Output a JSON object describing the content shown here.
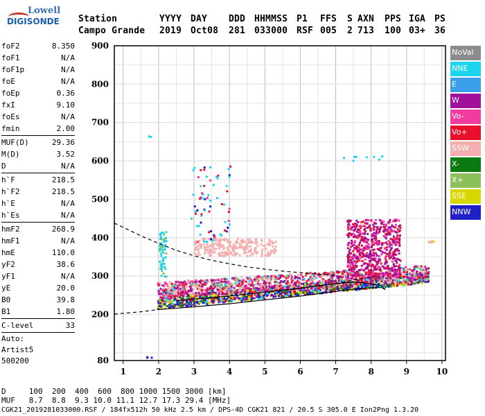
{
  "logo": {
    "line1": "Lowell",
    "line2": "DIGISONDE"
  },
  "header": {
    "labels": [
      "Station",
      "YYYY",
      "DAY",
      "DDD",
      "HHMMSS",
      "P1",
      "FFS",
      "S",
      "AXN",
      "PPS",
      "IGA",
      "PS"
    ],
    "values": [
      "Campo Grande",
      "2019",
      "Oct08",
      "281",
      "033000",
      "RSF",
      "005",
      "2",
      "713",
      "100",
      "03+",
      "36"
    ]
  },
  "params": [
    {
      "name": "foF2",
      "value": "8.350"
    },
    {
      "name": "foF1",
      "value": "N/A"
    },
    {
      "name": "foF1p",
      "value": "N/A"
    },
    {
      "name": "foE",
      "value": "N/A"
    },
    {
      "name": "foEp",
      "value": "0.36"
    },
    {
      "name": "fxI",
      "value": "9.10"
    },
    {
      "name": "foEs",
      "value": "N/A"
    },
    {
      "name": "fmin",
      "value": "2.00"
    },
    {
      "sep": true
    },
    {
      "name": "MUF(D)",
      "value": "29.36"
    },
    {
      "name": "M(D)",
      "value": "3.52"
    },
    {
      "name": "D",
      "value": "N/A"
    },
    {
      "sep": true
    },
    {
      "name": "h`F",
      "value": "218.5"
    },
    {
      "name": "h`F2",
      "value": "218.5"
    },
    {
      "name": "h`E",
      "value": "N/A"
    },
    {
      "name": "h`Es",
      "value": "N/A"
    },
    {
      "sep": true
    },
    {
      "name": "hmF2",
      "value": "268.9"
    },
    {
      "name": "hmF1",
      "value": "N/A"
    },
    {
      "name": "hmE",
      "value": "110.0"
    },
    {
      "name": "yF2",
      "value": "38.6"
    },
    {
      "name": "yF1",
      "value": "N/A"
    },
    {
      "name": "yE",
      "value": "20.0"
    },
    {
      "name": "B0",
      "value": "39.8"
    },
    {
      "name": "B1",
      "value": "1.80"
    },
    {
      "sep": true
    },
    {
      "name": "C-level",
      "value": "33"
    },
    {
      "sep": true
    }
  ],
  "auto": [
    "Auto:",
    "Artist5",
    "500200"
  ],
  "legend": [
    {
      "label": "NoVal",
      "color": "#8c8c8c"
    },
    {
      "label": "NNE",
      "color": "#1ad4f0"
    },
    {
      "label": "E",
      "color": "#3a9ee8"
    },
    {
      "label": "W",
      "color": "#a0109a"
    },
    {
      "label": "Vo-",
      "color": "#f03ca0"
    },
    {
      "label": "Vo+",
      "color": "#e8102a"
    },
    {
      "label": "SSW",
      "color": "#f4aeae"
    },
    {
      "label": "X-",
      "color": "#0a7a10"
    },
    {
      "label": "X+",
      "color": "#8cc05a"
    },
    {
      "label": "SSE",
      "color": "#d8d800"
    },
    {
      "label": "NNW",
      "color": "#2020c8"
    }
  ],
  "footer": {
    "line1": "D     100  200  400  600  800 1000 1500 3000 [km]",
    "line2": "MUF   8.7  8.8  9.3 10.0 11.1 12.7 17.3 29.4 [MHz]",
    "line3": "CGK21_2019281033000.RSF / 184fx512h 50 kHz 2.5 km / DPS-4D CGK21 821 / 20.5 S 305.0 E Ion2Png 1.3.20"
  },
  "chart_data": {
    "type": "scatter",
    "xlim": [
      0.75,
      10.1
    ],
    "ylim": [
      80,
      900
    ],
    "xticks": [
      1,
      2,
      3,
      4,
      5,
      6,
      7,
      8,
      9,
      10
    ],
    "yticks": [
      80,
      200,
      300,
      400,
      500,
      600,
      700,
      800,
      900
    ],
    "grid": true,
    "legend_position": "right",
    "traces": [
      {
        "style": "dashed",
        "points": [
          [
            0.75,
            438
          ],
          [
            1.5,
            405
          ],
          [
            2.0,
            385
          ],
          [
            2.5,
            367
          ],
          [
            3.0,
            353
          ],
          [
            3.5,
            341
          ],
          [
            4.0,
            332
          ],
          [
            4.5,
            324
          ],
          [
            5.0,
            318
          ],
          [
            5.5,
            313
          ],
          [
            6.0,
            309
          ],
          [
            6.5,
            305
          ],
          [
            7.0,
            302
          ]
        ]
      },
      {
        "style": "dashed",
        "points": [
          [
            0.75,
            201
          ],
          [
            1.5,
            207
          ],
          [
            2.0,
            213
          ]
        ]
      },
      {
        "style": "solid",
        "points": [
          [
            2.0,
            213
          ],
          [
            3.0,
            220
          ],
          [
            4.0,
            228
          ],
          [
            5.0,
            238
          ],
          [
            6.0,
            248
          ],
          [
            7.0,
            260
          ],
          [
            7.5,
            266
          ],
          [
            8.0,
            270
          ],
          [
            8.3,
            270
          ],
          [
            8.4,
            265
          ],
          [
            8.3,
            275
          ],
          [
            8.0,
            280
          ],
          [
            7.5,
            285
          ],
          [
            7.0,
            280
          ],
          [
            6.5,
            275
          ],
          [
            6.0,
            268
          ],
          [
            5.0,
            258
          ],
          [
            4.0,
            248
          ],
          [
            3.0,
            240
          ],
          [
            2.5,
            236
          ]
        ]
      },
      {
        "style": "dashed",
        "points": [
          [
            7.0,
            280
          ],
          [
            7.6,
            292
          ],
          [
            8.1,
            299
          ]
        ]
      }
    ],
    "clusters": [
      {
        "x": [
          1.95,
          9.6
        ],
        "y": [
          220,
          270
        ],
        "count": 1400,
        "colors": [
          "#2020c8",
          "#d8d800",
          "#0a7a10",
          "#e8102a",
          "#a0109a",
          "#1ad4f0"
        ],
        "weights": [
          4,
          3,
          2,
          2,
          1,
          1
        ],
        "trend": "rise",
        "rise": [
          232,
          300
        ]
      },
      {
        "x": [
          1.95,
          9.6
        ],
        "y": [
          250,
          320
        ],
        "count": 1200,
        "colors": [
          "#f4aeae",
          "#a0109a",
          "#f03ca0",
          "#e8102a",
          "#1ad4f0",
          "#8cc05a"
        ],
        "weights": [
          3,
          3,
          2,
          2,
          1,
          1
        ],
        "trend": "rise",
        "rise": [
          265,
          310
        ]
      },
      {
        "x": [
          7.3,
          8.8
        ],
        "y": [
          300,
          450
        ],
        "count": 650,
        "colors": [
          "#a0109a",
          "#f03ca0",
          "#e8102a"
        ],
        "weights": [
          4,
          2,
          2
        ]
      },
      {
        "x": [
          3.0,
          5.3
        ],
        "y": [
          355,
          400
        ],
        "count": 260,
        "colors": [
          "#f4aeae"
        ],
        "weights": [
          1
        ]
      },
      {
        "x": [
          2.0,
          2.2
        ],
        "y": [
          300,
          420
        ],
        "count": 60,
        "colors": [
          "#1ad4f0",
          "#8cc05a"
        ],
        "weights": [
          2,
          1
        ]
      },
      {
        "x": [
          2.9,
          4.0
        ],
        "y": [
          390,
          590
        ],
        "count": 70,
        "colors": [
          "#1ad4f0",
          "#f03ca0",
          "#e8102a",
          "#2020c8"
        ],
        "weights": [
          3,
          1,
          1,
          1
        ]
      },
      {
        "x": [
          7.2,
          8.4
        ],
        "y": [
          600,
          615
        ],
        "count": 8,
        "colors": [
          "#1ad4f0"
        ],
        "weights": [
          1
        ]
      },
      {
        "x": [
          9.6,
          9.8
        ],
        "y": [
          385,
          402
        ],
        "count": 5,
        "colors": [
          "#d8d800",
          "#f4aeae"
        ],
        "weights": [
          1,
          1
        ]
      },
      {
        "x": [
          1.7,
          1.8
        ],
        "y": [
          663,
          667
        ],
        "count": 2,
        "colors": [
          "#1ad4f0"
        ],
        "weights": [
          1
        ]
      },
      {
        "x": [
          1.65,
          1.8
        ],
        "y": [
          90,
          92
        ],
        "count": 3,
        "colors": [
          "#2020c8"
        ],
        "weights": [
          1
        ]
      }
    ]
  }
}
